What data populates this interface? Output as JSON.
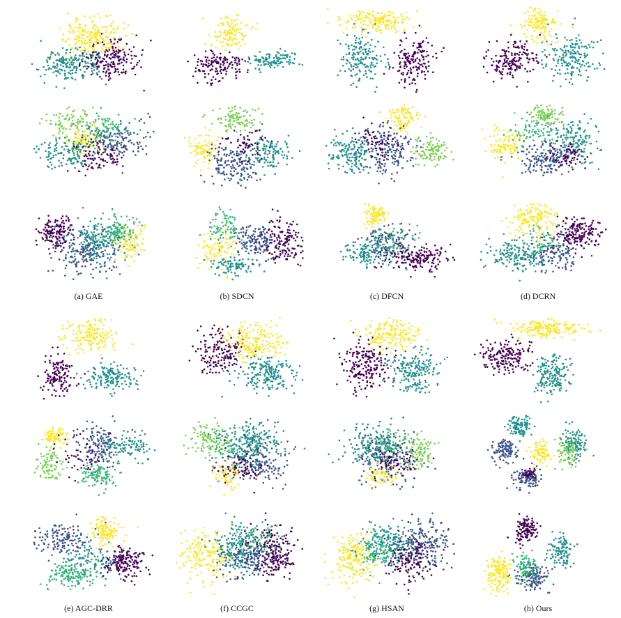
{
  "figure": {
    "colors": {
      "dark_purple": "#440154",
      "indigo": "#3b528b",
      "teal": "#21908c",
      "green": "#35b779",
      "light_green": "#7ad151",
      "yellow": "#fde725"
    }
  },
  "chart_data": [
    {
      "type": "scatter",
      "panel": "a",
      "caption": "(a) GAE"
    },
    {
      "type": "scatter",
      "panel": "b",
      "caption": "(b) SDCN"
    },
    {
      "type": "scatter",
      "panel": "c",
      "caption": "(c) DFCN"
    },
    {
      "type": "scatter",
      "panel": "d",
      "caption": "(d) DCRN"
    },
    {
      "type": "scatter",
      "panel": "e",
      "caption": "(e) AGC-DRR"
    },
    {
      "type": "scatter",
      "panel": "f",
      "caption": "(f) CCGC"
    },
    {
      "type": "scatter",
      "panel": "g",
      "caption": "(g) HSAN"
    },
    {
      "type": "scatter",
      "panel": "h",
      "caption": "(h) Ours"
    }
  ]
}
